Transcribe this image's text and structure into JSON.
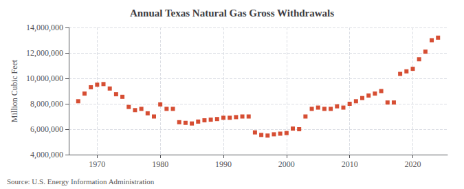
{
  "chart_data": {
    "type": "scatter",
    "title": "Annual Texas Natural Gas Gross Withdrawals",
    "ylabel": "Million Cubic Feet",
    "annotation": "Source: U.S. Energy Information Administration",
    "color": "#cc2200",
    "marker": "square",
    "grid": true,
    "xlim": [
      1965.5,
      2025.5
    ],
    "xticks": [
      1970,
      1980,
      1990,
      2000,
      2010,
      2020
    ],
    "ylim": [
      4000000,
      14000000
    ],
    "yticks": [
      {
        "value": 4000000,
        "label": "4,000,000"
      },
      {
        "value": 6000000,
        "label": "6,000,000"
      },
      {
        "value": 8000000,
        "label": "8,000,000"
      },
      {
        "value": 10000000,
        "label": "10,000,000"
      },
      {
        "value": 12000000,
        "label": "12,000,000"
      },
      {
        "value": 14000000,
        "label": "14,000,000"
      }
    ],
    "x": [
      1967,
      1968,
      1969,
      1970,
      1971,
      1972,
      1973,
      1974,
      1975,
      1976,
      1977,
      1978,
      1979,
      1980,
      1981,
      1982,
      1983,
      1984,
      1985,
      1986,
      1987,
      1988,
      1989,
      1990,
      1991,
      1992,
      1993,
      1994,
      1995,
      1996,
      1997,
      1998,
      1999,
      2000,
      2001,
      2002,
      2003,
      2004,
      2005,
      2006,
      2007,
      2008,
      2009,
      2010,
      2011,
      2012,
      2013,
      2014,
      2015,
      2016,
      2017,
      2018,
      2019,
      2020,
      2021,
      2022,
      2023,
      2024
    ],
    "values": [
      8200000,
      8800000,
      9300000,
      9500000,
      9550000,
      9200000,
      8750000,
      8550000,
      7750000,
      7500000,
      7600000,
      7250000,
      7000000,
      7950000,
      7600000,
      7600000,
      6550000,
      6500000,
      6450000,
      6600000,
      6700000,
      6750000,
      6800000,
      6900000,
      6900000,
      6950000,
      7000000,
      7000000,
      5750000,
      5550000,
      5500000,
      5600000,
      5650000,
      5700000,
      6050000,
      6000000,
      7000000,
      7600000,
      7700000,
      7600000,
      7600000,
      7800000,
      7700000,
      8000000,
      8200000,
      8450000,
      8650000,
      8800000,
      9000000,
      8100000,
      8100000,
      10350000,
      10550000,
      10750000,
      11500000,
      12100000,
      13000000,
      13200000
    ]
  }
}
